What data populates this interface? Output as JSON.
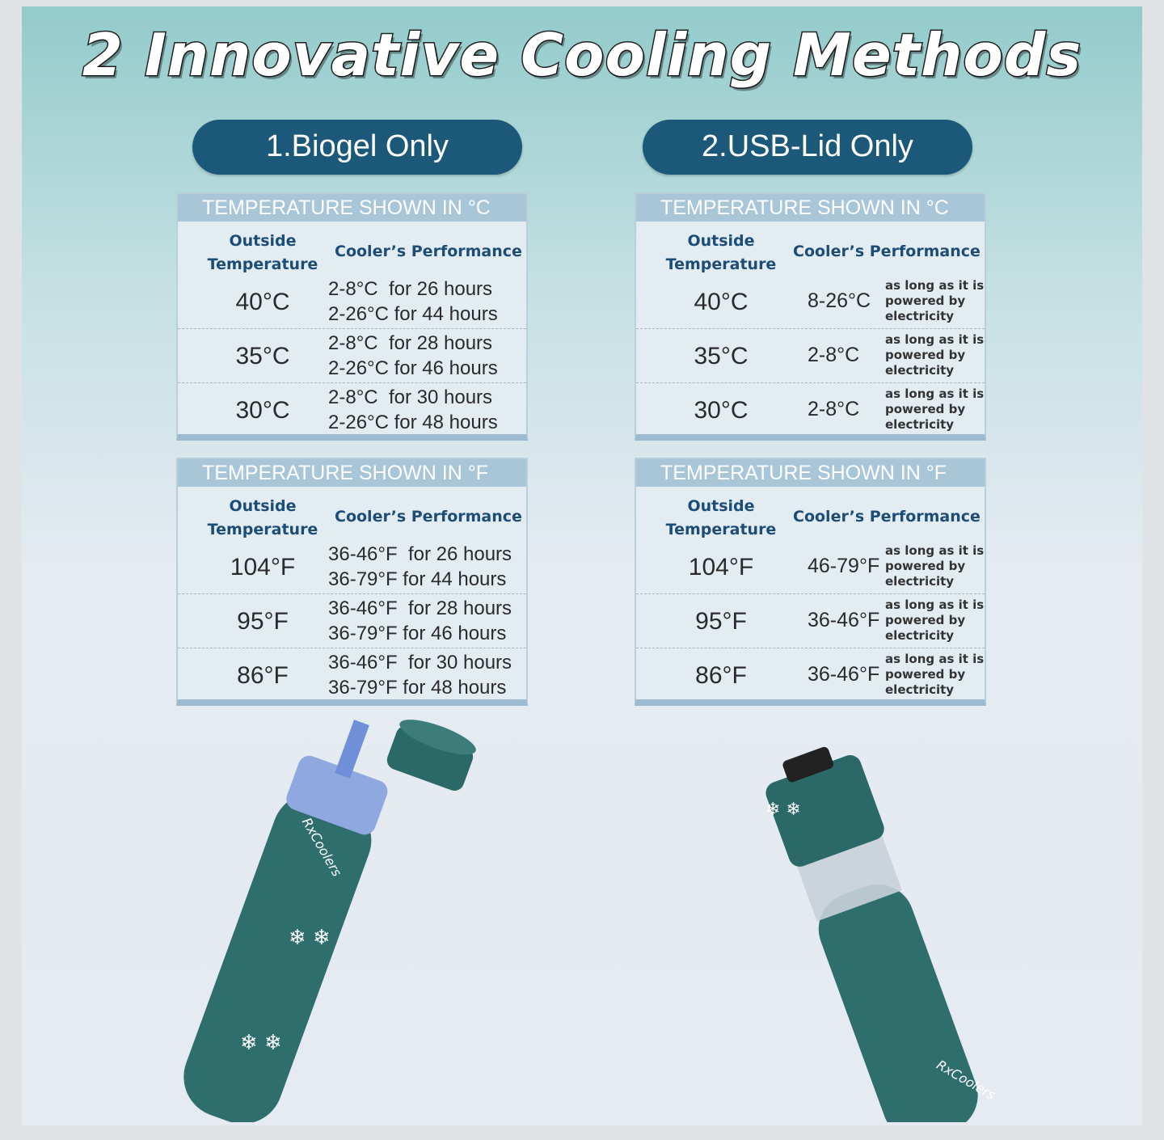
{
  "title": "2 Innovative Cooling Methods",
  "methods": [
    {
      "label": "1.Biogel Only",
      "tables": [
        {
          "header": "TEMPERATURE SHOWN IN °C",
          "col1": [
            "Outside",
            "Temperature"
          ],
          "col2": "Cooler’s Performance",
          "rows": [
            {
              "temp": "40°C",
              "perf": [
                "2-8°C  for 26 hours",
                "2-26°C for 44 hours"
              ]
            },
            {
              "temp": "35°C",
              "perf": [
                "2-8°C  for 28 hours",
                "2-26°C for 46 hours"
              ]
            },
            {
              "temp": "30°C",
              "perf": [
                "2-8°C  for 30 hours",
                "2-26°C for 48 hours"
              ]
            }
          ]
        },
        {
          "header": "TEMPERATURE SHOWN IN °F",
          "col1": [
            "Outside",
            "Temperature"
          ],
          "col2": "Cooler’s Performance",
          "rows": [
            {
              "temp": "104°F",
              "perf": [
                "36-46°F  for 26 hours",
                "36-79°F for 44 hours"
              ]
            },
            {
              "temp": "95°F",
              "perf": [
                "36-46°F  for 28 hours",
                "36-79°F for 46 hours"
              ]
            },
            {
              "temp": "86°F",
              "perf": [
                "36-46°F  for 30 hours",
                "36-79°F for 48 hours"
              ]
            }
          ]
        }
      ]
    },
    {
      "label": "2.USB-Lid Only",
      "tables": [
        {
          "header": "TEMPERATURE SHOWN IN °C",
          "col1": [
            "Outside",
            "Temperature"
          ],
          "col2": "Cooler’s Performance",
          "rows": [
            {
              "temp": "40°C",
              "range": "8-26°C",
              "note": "as long as it is powered by electricity"
            },
            {
              "temp": "35°C",
              "range": "2-8°C",
              "note": "as long as it is powered by electricity"
            },
            {
              "temp": "30°C",
              "range": "2-8°C",
              "note": "as long as it is powered by electricity"
            }
          ]
        },
        {
          "header": "TEMPERATURE SHOWN IN °F",
          "col1": [
            "Outside",
            "Temperature"
          ],
          "col2": "Cooler’s Performance",
          "rows": [
            {
              "temp": "104°F",
              "range": "46-79°F",
              "note": "as long as it is powered by electricity"
            },
            {
              "temp": "95°F",
              "range": "36-46°F",
              "note": "as long as it is powered by electricity"
            },
            {
              "temp": "86°F",
              "range": "36-46°F",
              "note": "as long as it is powered by electricity"
            }
          ]
        }
      ]
    }
  ],
  "brand": "RxCoolers",
  "colors": {
    "pill": "#1b587a",
    "bottle": "#2e6f6e",
    "header": "#a8c6d7"
  }
}
